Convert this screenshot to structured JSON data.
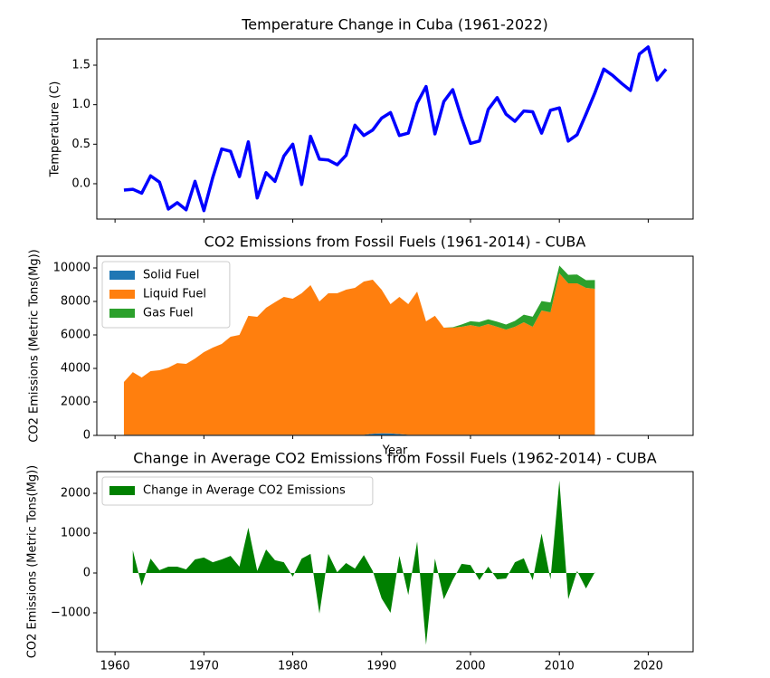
{
  "chart_data": [
    {
      "type": "line",
      "title": "Temperature Change in Cuba (1961-2022)",
      "ylabel": "Temperature (C)",
      "color": "#0000ff",
      "x": [
        1961,
        1962,
        1963,
        1964,
        1965,
        1966,
        1967,
        1968,
        1969,
        1970,
        1971,
        1972,
        1973,
        1974,
        1975,
        1976,
        1977,
        1978,
        1979,
        1980,
        1981,
        1982,
        1983,
        1984,
        1985,
        1986,
        1987,
        1988,
        1989,
        1990,
        1991,
        1992,
        1993,
        1994,
        1995,
        1996,
        1997,
        1998,
        1999,
        2000,
        2001,
        2002,
        2003,
        2004,
        2005,
        2006,
        2007,
        2008,
        2009,
        2010,
        2011,
        2012,
        2013,
        2014,
        2015,
        2016,
        2017,
        2018,
        2019,
        2020,
        2021,
        2022
      ],
      "values": [
        -0.08,
        -0.07,
        -0.12,
        0.1,
        0.02,
        -0.32,
        -0.24,
        -0.33,
        0.03,
        -0.34,
        0.08,
        0.44,
        0.41,
        0.09,
        0.53,
        -0.18,
        0.14,
        0.03,
        0.35,
        0.5,
        -0.01,
        0.6,
        0.31,
        0.3,
        0.24,
        0.36,
        0.74,
        0.61,
        0.68,
        0.83,
        0.9,
        0.61,
        0.64,
        1.02,
        1.23,
        0.63,
        1.04,
        1.19,
        0.83,
        0.51,
        0.54,
        0.94,
        1.09,
        0.88,
        0.79,
        0.92,
        0.91,
        0.64,
        0.93,
        0.96,
        0.54,
        0.62,
        0.88,
        1.15,
        1.45,
        1.37,
        1.27,
        1.18,
        1.64,
        1.73,
        1.31,
        1.45
      ],
      "xlim": [
        1957.95,
        2025.05
      ],
      "ylim": [
        -0.447,
        1.832
      ],
      "yticks": [
        {
          "value": 0,
          "label": "0.0"
        },
        0.5,
        {
          "value": 1,
          "label": "1.0"
        },
        1.5
      ]
    },
    {
      "type": "area",
      "stacked": true,
      "title": "CO2 Emissions from Fossil Fuels (1961-2014) - CUBA",
      "ylabel": "CO2 Emissions (Metric Tons(Mg))",
      "xlabel": "Year",
      "legend": "upper left",
      "x": [
        1961,
        1962,
        1963,
        1964,
        1965,
        1966,
        1967,
        1968,
        1969,
        1970,
        1971,
        1972,
        1973,
        1974,
        1975,
        1976,
        1977,
        1978,
        1979,
        1980,
        1981,
        1982,
        1983,
        1984,
        1985,
        1986,
        1987,
        1988,
        1989,
        1990,
        1991,
        1992,
        1993,
        1994,
        1995,
        1996,
        1997,
        1998,
        1999,
        2000,
        2001,
        2002,
        2003,
        2004,
        2005,
        2006,
        2007,
        2008,
        2009,
        2010,
        2011,
        2012,
        2013,
        2014
      ],
      "series": [
        {
          "name": "Solid Fuel",
          "color": "#1f77b4",
          "values": [
            40,
            40,
            40,
            40,
            40,
            40,
            40,
            40,
            40,
            40,
            40,
            40,
            40,
            40,
            40,
            40,
            40,
            40,
            40,
            40,
            40,
            40,
            40,
            40,
            40,
            40,
            40,
            40,
            100,
            130,
            120,
            80,
            40,
            40,
            40,
            40,
            40,
            40,
            40,
            40,
            40,
            40,
            40,
            40,
            40,
            40,
            40,
            40,
            40,
            40,
            40,
            40,
            40,
            40
          ]
        },
        {
          "name": "Liquid Fuel",
          "color": "#ff7f0e",
          "values": [
            3150,
            3740,
            3420,
            3800,
            3850,
            4010,
            4280,
            4230,
            4550,
            4930,
            5200,
            5420,
            5850,
            5960,
            7100,
            7040,
            7580,
            7910,
            8230,
            8120,
            8450,
            8930,
            7960,
            8450,
            8450,
            8660,
            8770,
            9150,
            9200,
            8570,
            7720,
            8190,
            7800,
            8550,
            6770,
            7100,
            6390,
            6390,
            6450,
            6550,
            6450,
            6610,
            6450,
            6280,
            6450,
            6720,
            6450,
            7420,
            7310,
            9640,
            9040,
            9040,
            8770,
            8720
          ]
        },
        {
          "name": "Gas Fuel",
          "color": "#2ca02c",
          "values": [
            0,
            0,
            0,
            0,
            0,
            0,
            0,
            0,
            0,
            0,
            0,
            0,
            0,
            0,
            0,
            0,
            0,
            0,
            0,
            0,
            0,
            0,
            0,
            0,
            0,
            0,
            0,
            0,
            0,
            0,
            0,
            0,
            0,
            0,
            0,
            0,
            0,
            30,
            130,
            230,
            280,
            280,
            300,
            300,
            350,
            450,
            600,
            560,
            590,
            460,
            510,
            530,
            460,
            520
          ]
        }
      ],
      "xlim": [
        1957.95,
        2025.05
      ],
      "ylim": [
        0,
        10703
      ],
      "yticks": [
        0,
        2000,
        4000,
        6000,
        8000,
        10000
      ]
    },
    {
      "type": "fill",
      "title": "Change in Average CO2 Emissions from Fossil Fuels (1962-2014) - CUBA",
      "ylabel": "CO2 Emissions (Metric Tons(Mg))",
      "legend": "upper left",
      "x": [
        1962,
        1963,
        1964,
        1965,
        1966,
        1967,
        1968,
        1969,
        1970,
        1971,
        1972,
        1973,
        1974,
        1975,
        1976,
        1977,
        1978,
        1979,
        1980,
        1981,
        1982,
        1983,
        1984,
        1985,
        1986,
        1987,
        1988,
        1989,
        1990,
        1991,
        1992,
        1993,
        1994,
        1995,
        1996,
        1997,
        1998,
        1999,
        2000,
        2001,
        2002,
        2003,
        2004,
        2005,
        2006,
        2007,
        2008,
        2009,
        2010,
        2011,
        2012,
        2013,
        2014
      ],
      "series": [
        {
          "name": "Change in Average CO2 Emissions",
          "color": "#008000",
          "values": [
            570,
            -320,
            360,
            70,
            160,
            160,
            90,
            340,
            390,
            270,
            340,
            430,
            160,
            1140,
            50,
            590,
            320,
            270,
            -90,
            360,
            480,
            -1020,
            480,
            20,
            250,
            110,
            450,
            50,
            -640,
            -1000,
            430,
            -550,
            790,
            -1800,
            360,
            -660,
            -180,
            230,
            200,
            -180,
            160,
            -160,
            -140,
            270,
            370,
            -180,
            990,
            -160,
            2320,
            -660,
            50,
            -390,
            20
          ]
        }
      ],
      "xlim": [
        1957.95,
        2025.05
      ],
      "ylim": [
        -1977,
        2545
      ],
      "yticks": [
        {
          "value": -1000,
          "label": "−1000"
        },
        0,
        1000,
        2000
      ],
      "xticks": [
        1960,
        1970,
        1980,
        1990,
        2000,
        2010,
        2020
      ]
    }
  ]
}
